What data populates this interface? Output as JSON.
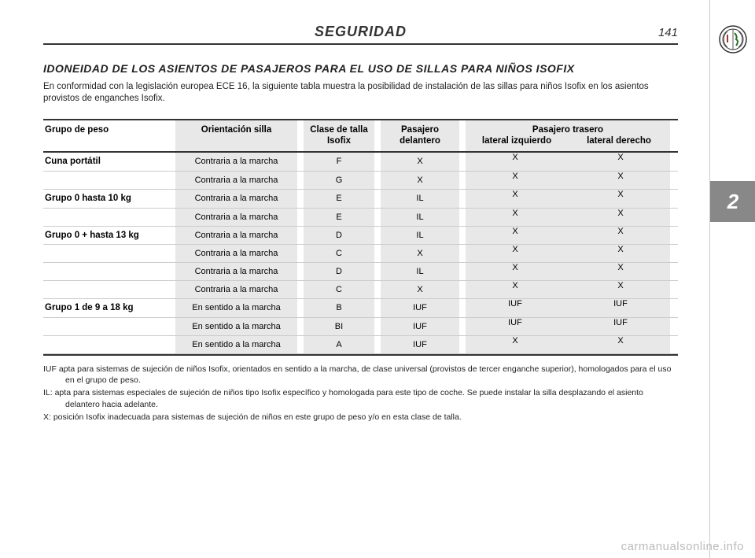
{
  "page": {
    "header_title": "SEGURIDAD",
    "page_number": "141",
    "chapter_number": "2"
  },
  "section": {
    "title": "IDONEIDAD DE LOS ASIENTOS DE PASAJEROS PARA EL USO DE SILLAS PARA NIÑOS ISOFIX",
    "intro": "En conformidad con la legislación europea ECE 16, la siguiente tabla muestra la posibilidad de instalación de las sillas para niños Isofix en los asientos provistos de enganches Isofix."
  },
  "table": {
    "headers": {
      "group": "Grupo de peso",
      "orientation": "Orientación silla",
      "size": "Clase de talla Isofix",
      "front": "Pasajero delantero",
      "rear_top": "Pasajero trasero",
      "rear_left": "lateral izquierdo",
      "rear_right": "lateral derecho"
    },
    "groups": [
      {
        "label": "Cuna portátil",
        "rows": [
          {
            "orient": "Contraria a la marcha",
            "size": "F",
            "front": "X",
            "rl": "X",
            "rr": "X"
          },
          {
            "orient": "Contraria a la marcha",
            "size": "G",
            "front": "X",
            "rl": "X",
            "rr": "X"
          }
        ]
      },
      {
        "label": "Grupo 0 hasta 10 kg",
        "rows": [
          {
            "orient": "Contraria a la marcha",
            "size": "E",
            "front": "IL",
            "rl": "X",
            "rr": "X"
          }
        ]
      },
      {
        "label": "Grupo 0 + hasta 13 kg",
        "rows": [
          {
            "orient": "Contraria a la marcha",
            "size": "E",
            "front": "IL",
            "rl": "X",
            "rr": "X"
          },
          {
            "orient": "Contraria a la marcha",
            "size": "D",
            "front": "IL",
            "rl": "X",
            "rr": "X"
          },
          {
            "orient": "Contraria a la marcha",
            "size": "C",
            "front": "X",
            "rl": "X",
            "rr": "X"
          }
        ]
      },
      {
        "label": "Grupo 1 de 9 a 18 kg",
        "rows": [
          {
            "orient": "Contraria a la marcha",
            "size": "D",
            "front": "IL",
            "rl": "X",
            "rr": "X"
          },
          {
            "orient": "Contraria a la marcha",
            "size": "C",
            "front": "X",
            "rl": "X",
            "rr": "X"
          },
          {
            "orient": "En sentido a la marcha",
            "size": "B",
            "front": "IUF",
            "rl": "IUF",
            "rr": "IUF"
          },
          {
            "orient": "En sentido a la marcha",
            "size": "BI",
            "front": "IUF",
            "rl": "IUF",
            "rr": "IUF"
          },
          {
            "orient": "En sentido a la marcha",
            "size": "A",
            "front": "IUF",
            "rl": "X",
            "rr": "X"
          }
        ]
      }
    ]
  },
  "notes": {
    "iuf": "IUF apta para sistemas de sujeción de niños Isofix, orientados en sentido a la marcha, de clase universal (provistos de tercer enganche superior), homologados para el uso en el grupo de peso.",
    "il": "IL: apta para sistemas especiales de sujeción de niños tipo Isofix específico y homologada para este tipo de coche. Se puede instalar la silla desplazando el asiento delantero hacia adelante.",
    "x": "X: posición Isofix inadecuada para sistemas de sujeción de niños en este grupo de peso y/o en esta clase de talla."
  },
  "watermark": "carmanualsonline.info"
}
